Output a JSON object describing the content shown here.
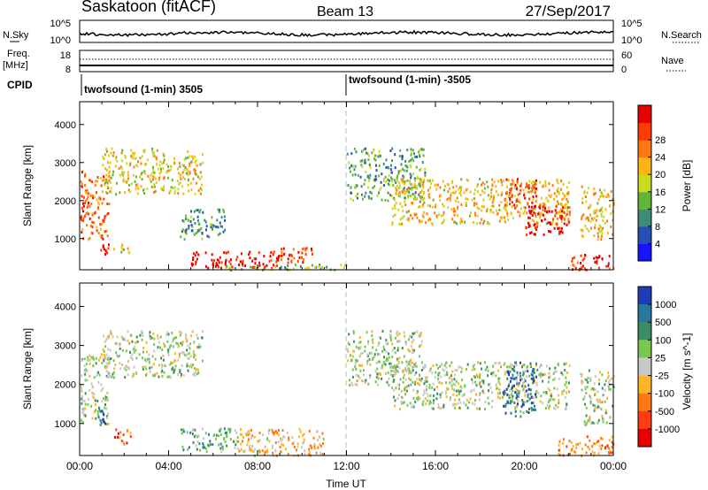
{
  "header": {
    "station": "Saskatoon (fitACF)",
    "beam": "Beam 13",
    "date": "27/Sep/2017"
  },
  "noise_panel": {
    "left_label": "N.Sky",
    "right_label": "N.Search",
    "left_ticks": [
      "10^5",
      "10^0"
    ],
    "right_ticks": [
      "10^5",
      "10^0"
    ]
  },
  "freq_panel": {
    "left_label": "Freq.",
    "left_unit": "[MHz]",
    "right_label": "Nave",
    "left_ticks": [
      "18",
      "8"
    ],
    "right_ticks": [
      "60",
      "0"
    ]
  },
  "cpid": {
    "label": "CPID",
    "segments": [
      {
        "start_hour": 0,
        "text": "twofsound (1-min) 3505"
      },
      {
        "start_hour": 12,
        "text": "twofsound (1-min) -3505"
      }
    ]
  },
  "chart_data": [
    {
      "type": "heatmap",
      "title": "",
      "ylabel": "Slant Range [km]",
      "xlabel": "",
      "x_ticks": [
        "00:00",
        "04:00",
        "08:00",
        "12:00",
        "16:00",
        "20:00",
        "00:00"
      ],
      "xlim_hours": [
        0,
        24
      ],
      "y_ticks": [
        1000,
        2000,
        3000,
        4000
      ],
      "ylim_km": [
        180,
        4600
      ],
      "colorbar": {
        "label": "Power [dB]",
        "ticks": [
          "4",
          "8",
          "12",
          "16",
          "20",
          "24",
          "28"
        ],
        "colors": [
          "#1414ff",
          "#2850b4",
          "#3c8c78",
          "#64b43c",
          "#c8dc1e",
          "#ffb414",
          "#ff7814",
          "#ff3c00",
          "#e60000"
        ]
      },
      "regions": [
        {
          "hours": [
            0.0,
            1.3
          ],
          "range_km": [
            1000,
            2800
          ],
          "level": 0.75
        },
        {
          "hours": [
            0.9,
            1.3
          ],
          "range_km": [
            600,
            1200
          ],
          "level": 0.95
        },
        {
          "hours": [
            1.0,
            5.5
          ],
          "range_km": [
            2200,
            3400
          ],
          "level": 0.55
        },
        {
          "hours": [
            1.5,
            2.2
          ],
          "range_km": [
            600,
            900
          ],
          "level": 0.55
        },
        {
          "hours": [
            4.5,
            6.5
          ],
          "range_km": [
            1000,
            1800
          ],
          "level": 0.3
        },
        {
          "hours": [
            5.0,
            9.0
          ],
          "range_km": [
            250,
            700
          ],
          "level": 0.95
        },
        {
          "hours": [
            8.5,
            10.5
          ],
          "range_km": [
            400,
            800
          ],
          "level": 0.85
        },
        {
          "hours": [
            6.5,
            12.0
          ],
          "range_km": [
            200,
            350
          ],
          "level": 0.4
        },
        {
          "hours": [
            12.0,
            15.5
          ],
          "range_km": [
            2000,
            3400
          ],
          "level": 0.35
        },
        {
          "hours": [
            14.0,
            22.0
          ],
          "range_km": [
            1400,
            2600
          ],
          "level": 0.6
        },
        {
          "hours": [
            19.0,
            20.5
          ],
          "range_km": [
            1800,
            2600
          ],
          "level": 0.85
        },
        {
          "hours": [
            20.0,
            22.0
          ],
          "range_km": [
            1100,
            1900
          ],
          "level": 0.95
        },
        {
          "hours": [
            22.0,
            24.0
          ],
          "range_km": [
            200,
            600
          ],
          "level": 0.9
        },
        {
          "hours": [
            22.5,
            24.0
          ],
          "range_km": [
            1000,
            2400
          ],
          "level": 0.6
        }
      ]
    },
    {
      "type": "heatmap",
      "title": "",
      "ylabel": "Slant Range [km]",
      "xlabel": "Time UT",
      "x_ticks": [
        "00:00",
        "04:00",
        "08:00",
        "12:00",
        "16:00",
        "20:00",
        "00:00"
      ],
      "xlim_hours": [
        0,
        24
      ],
      "y_ticks": [
        1000,
        2000,
        3000,
        4000
      ],
      "ylim_km": [
        180,
        4600
      ],
      "colorbar": {
        "label": "Velocity [m s^-1]",
        "ticks": [
          "1000",
          "500",
          "100",
          "25",
          "-25",
          "-100",
          "-500",
          "-1000"
        ],
        "colors": [
          "#1e3cb4",
          "#2878a0",
          "#3c8c64",
          "#78c850",
          "#c8c8c8",
          "#ffb428",
          "#ff7814",
          "#ff3c14",
          "#e60000"
        ]
      },
      "regions": [
        {
          "hours": [
            0.0,
            1.3
          ],
          "range_km": [
            1000,
            2800
          ],
          "level": 0.45
        },
        {
          "hours": [
            0.8,
            1.2
          ],
          "range_km": [
            900,
            1500
          ],
          "level": 0.1
        },
        {
          "hours": [
            1.0,
            5.5
          ],
          "range_km": [
            2200,
            3400
          ],
          "level": 0.45
        },
        {
          "hours": [
            1.5,
            2.3
          ],
          "range_km": [
            500,
            900
          ],
          "level": 0.8
        },
        {
          "hours": [
            4.5,
            7.0
          ],
          "range_km": [
            300,
            900
          ],
          "level": 0.35
        },
        {
          "hours": [
            7.0,
            11.0
          ],
          "range_km": [
            200,
            900
          ],
          "level": 0.6
        },
        {
          "hours": [
            12.0,
            15.5
          ],
          "range_km": [
            2000,
            3400
          ],
          "level": 0.45
        },
        {
          "hours": [
            14.0,
            22.0
          ],
          "range_km": [
            1400,
            2600
          ],
          "level": 0.45
        },
        {
          "hours": [
            19.0,
            20.5
          ],
          "range_km": [
            1200,
            2600
          ],
          "level": 0.2
        },
        {
          "hours": [
            21.5,
            24.0
          ],
          "range_km": [
            200,
            700
          ],
          "level": 0.72
        },
        {
          "hours": [
            22.5,
            24.0
          ],
          "range_km": [
            1000,
            2400
          ],
          "level": 0.45
        }
      ]
    }
  ]
}
